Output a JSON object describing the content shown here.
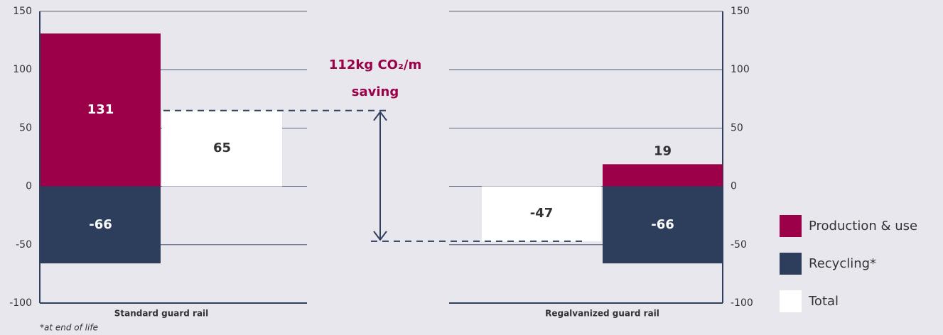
{
  "chart_data": {
    "type": "bar",
    "categories": [
      "Standard guard rail",
      "Regalvanized guard rail"
    ],
    "series": [
      {
        "name": "Production & use",
        "color": "#9b0048",
        "values": [
          131,
          19
        ]
      },
      {
        "name": "Recycling*",
        "color": "#2c3e5c",
        "values": [
          -66,
          -66
        ]
      },
      {
        "name": "Total",
        "color": "#ffffff",
        "values": [
          65,
          -47
        ]
      }
    ],
    "ylim": [
      -100,
      150
    ],
    "yticks": [
      -100,
      -50,
      0,
      50,
      100,
      150
    ],
    "grid": true,
    "annotation": [
      "112kg CO₂/m",
      "saving"
    ],
    "footnote": "*at end of life",
    "legend": "right"
  }
}
